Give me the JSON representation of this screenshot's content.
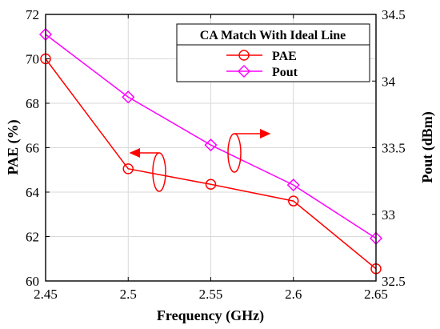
{
  "chart_data": {
    "type": "line",
    "title": "",
    "xlabel": "Frequency (GHz)",
    "ylabel_left": "PAE (%)",
    "ylabel_right": "Pout (dBm)",
    "x": [
      2.45,
      2.5,
      2.55,
      2.6,
      2.65
    ],
    "xlim": [
      2.45,
      2.65
    ],
    "xticks": [
      "2.45",
      "2.5",
      "2.55",
      "2.6",
      "2.65"
    ],
    "ylim_left": [
      60,
      72
    ],
    "yticks_left": [
      "60",
      "62",
      "64",
      "66",
      "68",
      "70",
      "72"
    ],
    "ylim_right": [
      32.5,
      34.5
    ],
    "yticks_right": [
      "32.5",
      "33",
      "33.5",
      "34",
      "34.5"
    ],
    "grid": true,
    "legend": {
      "title": "CA Match With Ideal Line",
      "placement": "top-right"
    },
    "series": [
      {
        "name": "PAE",
        "axis": "left",
        "marker": "circle",
        "color": "#ff0000",
        "values": [
          70.0,
          65.05,
          64.35,
          63.6,
          60.55
        ]
      },
      {
        "name": "Pout",
        "axis": "right",
        "marker": "diamond",
        "color": "#ff00ff",
        "values": [
          34.35,
          33.88,
          33.52,
          33.22,
          32.82
        ]
      }
    ],
    "annotations": [
      {
        "type": "axis-arrow",
        "series": "PAE",
        "direction": "left",
        "color": "#ff0000"
      },
      {
        "type": "axis-arrow",
        "series": "Pout",
        "direction": "right",
        "color": "#ff0000"
      }
    ]
  }
}
